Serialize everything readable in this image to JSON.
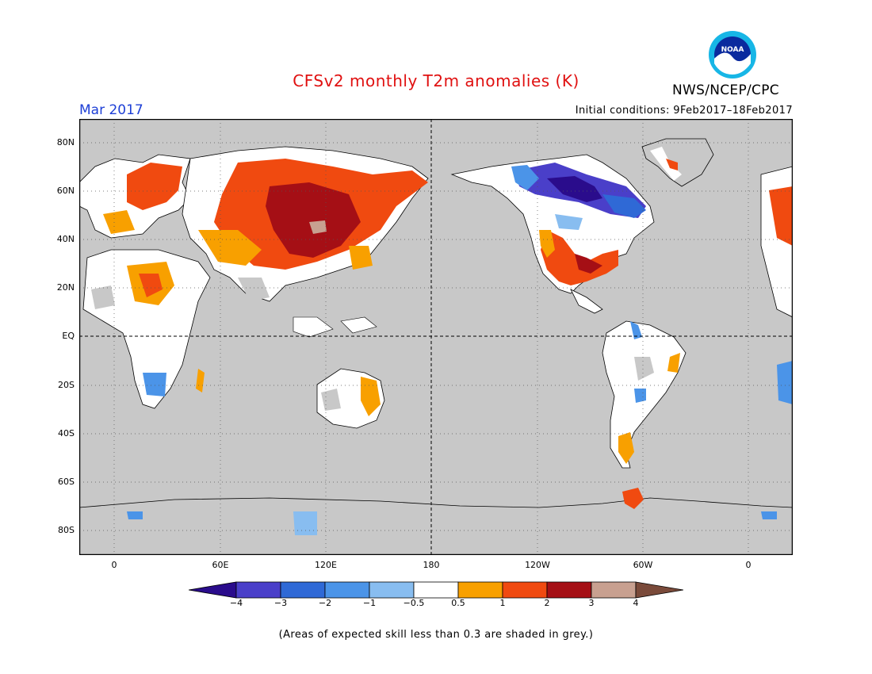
{
  "header": {
    "title": "CFSv2 monthly T2m anomalies (K)",
    "agency": "NWS/NCEP/CPC",
    "logo_text": "NOAA",
    "month": "Mar 2017",
    "initial_conditions": "Initial conditions: 9Feb2017–18Feb2017"
  },
  "axes": {
    "lat_labels": [
      "80N",
      "60N",
      "40N",
      "20N",
      "EQ",
      "20S",
      "40S",
      "60S",
      "80S"
    ],
    "lon_labels": [
      "0",
      "60E",
      "120E",
      "180",
      "120W",
      "60W",
      "0"
    ]
  },
  "colorbar": {
    "colors": [
      "#2a0c8c",
      "#4a3fc9",
      "#2f69d6",
      "#4b94e8",
      "#88bdf0",
      "#ffffff",
      "#f8a000",
      "#f04a10",
      "#a50f15",
      "#c8a090",
      "#7a4a3a"
    ],
    "tick_labels": [
      "−4",
      "−3",
      "−2",
      "−1",
      "−0.5",
      "0.5",
      "1",
      "2",
      "3",
      "4"
    ]
  },
  "colors": {
    "skill_grey": "#c8c8c8",
    "title_red": "#e01010",
    "month_blue": "#1d3fd6"
  },
  "footnote": "(Areas of expected skill less than 0.3 are shaded in grey.)"
}
